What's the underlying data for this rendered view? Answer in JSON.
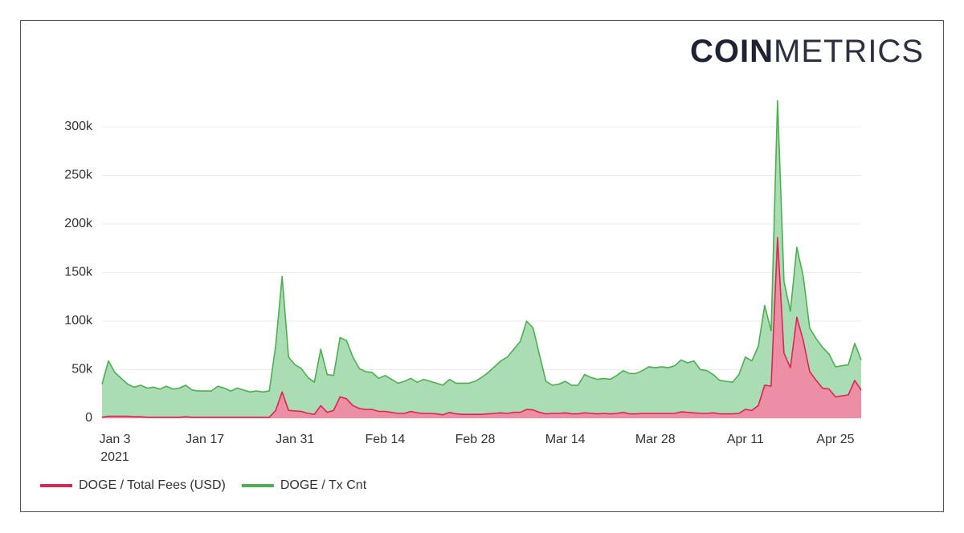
{
  "brand": {
    "bold": "COIN",
    "light": "METRICS"
  },
  "chart_data": {
    "type": "area",
    "x": [
      "2021-01-01",
      "2021-01-02",
      "2021-01-03",
      "2021-01-04",
      "2021-01-05",
      "2021-01-06",
      "2021-01-07",
      "2021-01-08",
      "2021-01-09",
      "2021-01-10",
      "2021-01-11",
      "2021-01-12",
      "2021-01-13",
      "2021-01-14",
      "2021-01-15",
      "2021-01-16",
      "2021-01-17",
      "2021-01-18",
      "2021-01-19",
      "2021-01-20",
      "2021-01-21",
      "2021-01-22",
      "2021-01-23",
      "2021-01-24",
      "2021-01-25",
      "2021-01-26",
      "2021-01-27",
      "2021-01-28",
      "2021-01-29",
      "2021-01-30",
      "2021-01-31",
      "2021-02-01",
      "2021-02-02",
      "2021-02-03",
      "2021-02-04",
      "2021-02-05",
      "2021-02-06",
      "2021-02-07",
      "2021-02-08",
      "2021-02-09",
      "2021-02-10",
      "2021-02-11",
      "2021-02-12",
      "2021-02-13",
      "2021-02-14",
      "2021-02-15",
      "2021-02-16",
      "2021-02-17",
      "2021-02-18",
      "2021-02-19",
      "2021-02-20",
      "2021-02-21",
      "2021-02-22",
      "2021-02-23",
      "2021-02-24",
      "2021-02-25",
      "2021-02-26",
      "2021-02-27",
      "2021-02-28",
      "2021-03-01",
      "2021-03-02",
      "2021-03-03",
      "2021-03-04",
      "2021-03-05",
      "2021-03-06",
      "2021-03-07",
      "2021-03-08",
      "2021-03-09",
      "2021-03-10",
      "2021-03-11",
      "2021-03-12",
      "2021-03-13",
      "2021-03-14",
      "2021-03-15",
      "2021-03-16",
      "2021-03-17",
      "2021-03-18",
      "2021-03-19",
      "2021-03-20",
      "2021-03-21",
      "2021-03-22",
      "2021-03-23",
      "2021-03-24",
      "2021-03-25",
      "2021-03-26",
      "2021-03-27",
      "2021-03-28",
      "2021-03-29",
      "2021-03-30",
      "2021-03-31",
      "2021-04-01",
      "2021-04-02",
      "2021-04-03",
      "2021-04-04",
      "2021-04-05",
      "2021-04-06",
      "2021-04-07",
      "2021-04-08",
      "2021-04-09",
      "2021-04-10",
      "2021-04-11",
      "2021-04-12",
      "2021-04-13",
      "2021-04-14",
      "2021-04-15",
      "2021-04-16",
      "2021-04-17",
      "2021-04-18",
      "2021-04-19",
      "2021-04-20",
      "2021-04-21",
      "2021-04-22",
      "2021-04-23",
      "2021-04-24",
      "2021-04-25",
      "2021-04-26",
      "2021-04-27",
      "2021-04-28",
      "2021-04-29"
    ],
    "series": [
      {
        "name": "DOGE / Tx Cnt",
        "color": "#4caf50",
        "fill": "#a6dbb0",
        "values": [
          35000,
          59000,
          47000,
          41000,
          35000,
          32000,
          34000,
          31000,
          32000,
          30000,
          33000,
          30000,
          31000,
          34000,
          29000,
          28000,
          28000,
          28000,
          33000,
          31000,
          28000,
          31000,
          29000,
          27000,
          28000,
          27000,
          28000,
          75000,
          146000,
          63000,
          55000,
          51000,
          42000,
          37000,
          71000,
          45000,
          44000,
          83000,
          80000,
          63000,
          51000,
          48000,
          47000,
          41000,
          44000,
          40000,
          36000,
          38000,
          41000,
          37000,
          40000,
          38000,
          36000,
          34000,
          40000,
          36000,
          36000,
          36000,
          38000,
          42000,
          47000,
          53000,
          59000,
          63000,
          71000,
          79000,
          100000,
          93000,
          65000,
          38000,
          34000,
          35000,
          38000,
          34000,
          34000,
          45000,
          42000,
          40000,
          41000,
          40000,
          44000,
          49000,
          46000,
          46000,
          49000,
          53000,
          52000,
          53000,
          52000,
          54000,
          60000,
          57000,
          59000,
          50000,
          49000,
          45000,
          39000,
          38000,
          37000,
          45000,
          63000,
          59000,
          74000,
          116000,
          90000,
          327000,
          141000,
          110000,
          176000,
          146000,
          93000,
          82000,
          73000,
          66000,
          53000,
          54000,
          55000,
          77000,
          60000
        ]
      },
      {
        "name": "DOGE / Total Fees (USD)",
        "color": "#dd2555",
        "fill": "#f08aa3",
        "values": [
          1000,
          2000,
          2000,
          2000,
          2000,
          1500,
          1500,
          1000,
          1000,
          1000,
          1000,
          1000,
          1000,
          1500,
          1000,
          1000,
          1000,
          1000,
          1000,
          1000,
          1000,
          1000,
          1000,
          1000,
          1000,
          1000,
          1000,
          8000,
          27000,
          8000,
          7500,
          7000,
          5000,
          4000,
          13000,
          6000,
          8000,
          22000,
          20000,
          13000,
          10000,
          9000,
          9000,
          7000,
          7000,
          6000,
          5000,
          5000,
          7000,
          5500,
          5000,
          5000,
          4500,
          3500,
          6000,
          4500,
          4000,
          4000,
          4000,
          4000,
          4500,
          5000,
          5500,
          5000,
          6000,
          6000,
          9000,
          8500,
          6000,
          4500,
          5000,
          5000,
          5500,
          4500,
          4500,
          5500,
          5000,
          4500,
          5000,
          4500,
          5000,
          6000,
          4500,
          4500,
          5000,
          5000,
          5000,
          5000,
          5000,
          5000,
          6500,
          6000,
          5500,
          5000,
          5000,
          5500,
          4500,
          4500,
          4500,
          5000,
          9000,
          8000,
          13000,
          34000,
          33000,
          186000,
          67000,
          52000,
          104000,
          80000,
          48000,
          39000,
          31000,
          30000,
          22000,
          23000,
          24000,
          39000,
          29000
        ]
      }
    ],
    "legend_order": [
      1,
      0
    ],
    "xlim": [
      "2021-01-01",
      "2021-04-29"
    ],
    "xticks": [
      {
        "value": "2021-01-03",
        "label": "Jan 3"
      },
      {
        "value": "2021-01-17",
        "label": "Jan 17"
      },
      {
        "value": "2021-01-31",
        "label": "Jan 31"
      },
      {
        "value": "2021-02-14",
        "label": "Feb 14"
      },
      {
        "value": "2021-02-28",
        "label": "Feb 28"
      },
      {
        "value": "2021-03-14",
        "label": "Mar 14"
      },
      {
        "value": "2021-03-28",
        "label": "Mar 28"
      },
      {
        "value": "2021-04-11",
        "label": "Apr 11"
      },
      {
        "value": "2021-04-25",
        "label": "Apr 25"
      }
    ],
    "year_label": "2021",
    "ylim": [
      0,
      330000
    ],
    "yticks": [
      0,
      {
        "value": 50000,
        "label": "50k"
      },
      {
        "value": 100000,
        "label": "100k"
      },
      {
        "value": 150000,
        "label": "150k"
      },
      {
        "value": 200000,
        "label": "200k"
      },
      {
        "value": 250000,
        "label": "250k"
      },
      {
        "value": 300000,
        "label": "300k"
      }
    ],
    "grid": true
  }
}
